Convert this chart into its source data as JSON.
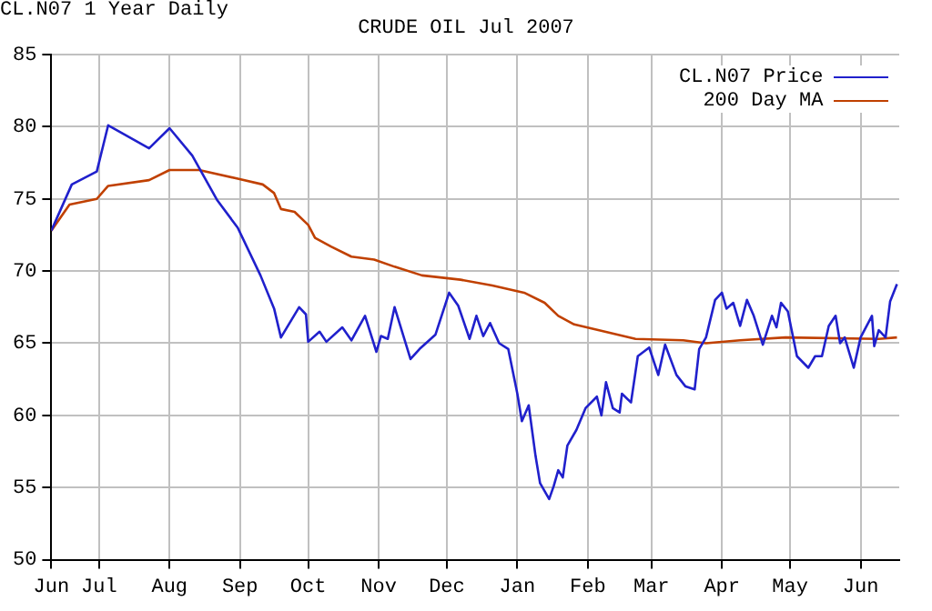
{
  "chart_data": {
    "type": "line",
    "title": "CRUDE OIL Jul 2007",
    "annotations": [
      "CL.N07 1 Year Daily"
    ],
    "xlim": [
      "2006-06-10",
      "2007-06-18"
    ],
    "xticks": [
      {
        "value": "2006-06-10",
        "label": "Jun"
      },
      {
        "value": "2006-07-01",
        "label": "Jul"
      },
      {
        "value": "2006-08-01",
        "label": "Aug"
      },
      {
        "value": "2006-09-01",
        "label": "Sep"
      },
      {
        "value": "2006-10-01",
        "label": "Oct"
      },
      {
        "value": "2006-11-01",
        "label": "Nov"
      },
      {
        "value": "2006-12-01",
        "label": "Dec"
      },
      {
        "value": "2007-01-01",
        "label": "Jan"
      },
      {
        "value": "2007-02-01",
        "label": "Feb"
      },
      {
        "value": "2007-03-01",
        "label": "Mar"
      },
      {
        "value": "2007-04-01",
        "label": "Apr"
      },
      {
        "value": "2007-05-01",
        "label": "May"
      },
      {
        "value": "2007-06-01",
        "label": "Jun"
      }
    ],
    "ylim": [
      50,
      85
    ],
    "yticks": [
      50,
      55,
      60,
      65,
      70,
      75,
      80,
      85
    ],
    "grid": true,
    "legend": "top right",
    "marker": "none",
    "line_style": "solid",
    "series": [
      {
        "name": "CL.N07 Price",
        "color": "#2020cc",
        "x": [
          "2006-06-10",
          "2006-06-19",
          "2006-06-30",
          "2006-07-05",
          "2006-07-23",
          "2006-08-01",
          "2006-08-11",
          "2006-08-22",
          "2006-08-31",
          "2006-09-10",
          "2006-09-16",
          "2006-09-19",
          "2006-09-27",
          "2006-09-30",
          "2006-10-01",
          "2006-10-06",
          "2006-10-09",
          "2006-10-16",
          "2006-10-20",
          "2006-10-26",
          "2006-10-31",
          "2006-11-02",
          "2006-11-05",
          "2006-11-08",
          "2006-11-15",
          "2006-11-19",
          "2006-11-26",
          "2006-12-02",
          "2006-12-06",
          "2006-12-11",
          "2006-12-14",
          "2006-12-17",
          "2006-12-20",
          "2006-12-24",
          "2006-12-28",
          "2007-01-01",
          "2007-01-03",
          "2007-01-06",
          "2007-01-09",
          "2007-01-11",
          "2007-01-15",
          "2007-01-17",
          "2007-01-19",
          "2007-01-21",
          "2007-01-23",
          "2007-01-27",
          "2007-01-31",
          "2007-02-05",
          "2007-02-07",
          "2007-02-09",
          "2007-02-12",
          "2007-02-15",
          "2007-02-16",
          "2007-02-20",
          "2007-02-23",
          "2007-02-28",
          "2007-03-04",
          "2007-03-07",
          "2007-03-12",
          "2007-03-16",
          "2007-03-20",
          "2007-03-22",
          "2007-03-25",
          "2007-03-29",
          "2007-04-01",
          "2007-04-03",
          "2007-04-06",
          "2007-04-09",
          "2007-04-12",
          "2007-04-15",
          "2007-04-19",
          "2007-04-23",
          "2007-04-25",
          "2007-04-27",
          "2007-04-30",
          "2007-05-04",
          "2007-05-09",
          "2007-05-12",
          "2007-05-15",
          "2007-05-18",
          "2007-05-21",
          "2007-05-23",
          "2007-05-25",
          "2007-05-29",
          "2007-06-01",
          "2007-06-04",
          "2007-06-06",
          "2007-06-07",
          "2007-06-09",
          "2007-06-12",
          "2007-06-14",
          "2007-06-17"
        ],
        "values": [
          72.8,
          76.0,
          76.9,
          80.1,
          78.5,
          79.9,
          78.0,
          74.9,
          73.0,
          69.7,
          67.4,
          65.4,
          67.5,
          67.0,
          65.1,
          65.8,
          65.1,
          66.1,
          65.2,
          66.9,
          64.4,
          65.5,
          65.3,
          67.5,
          63.9,
          64.6,
          65.6,
          68.5,
          67.6,
          65.3,
          66.9,
          65.5,
          66.4,
          65.0,
          64.6,
          61.5,
          59.6,
          60.7,
          57.2,
          55.3,
          54.2,
          55.1,
          56.2,
          55.7,
          57.9,
          59.0,
          60.5,
          61.3,
          60.0,
          62.3,
          60.5,
          60.2,
          61.5,
          60.9,
          64.1,
          64.7,
          62.8,
          64.9,
          62.8,
          62.0,
          61.8,
          64.6,
          65.4,
          68.0,
          68.5,
          67.4,
          67.8,
          66.2,
          68.0,
          66.9,
          64.9,
          66.9,
          66.1,
          67.8,
          67.2,
          64.1,
          63.3,
          64.1,
          64.1,
          66.2,
          66.9,
          65.0,
          65.4,
          63.3,
          65.4,
          66.3,
          66.9,
          64.8,
          65.9,
          65.4,
          67.9,
          69.1
        ]
      },
      {
        "name": "200 Day MA",
        "color": "#c04000",
        "x": [
          "2006-06-10",
          "2006-06-18",
          "2006-06-30",
          "2006-07-05",
          "2006-07-23",
          "2006-08-01",
          "2006-08-14",
          "2006-08-31",
          "2006-09-11",
          "2006-09-16",
          "2006-09-19",
          "2006-09-25",
          "2006-10-01",
          "2006-10-04",
          "2006-10-11",
          "2006-10-20",
          "2006-10-30",
          "2006-11-08",
          "2006-11-20",
          "2006-12-07",
          "2006-12-21",
          "2007-01-04",
          "2007-01-13",
          "2007-01-19",
          "2007-01-26",
          "2007-02-06",
          "2007-02-22",
          "2007-03-15",
          "2007-03-25",
          "2007-04-09",
          "2007-04-29",
          "2007-06-09",
          "2007-06-17"
        ],
        "values": [
          72.8,
          74.6,
          75.0,
          75.9,
          76.3,
          77.0,
          77.0,
          76.4,
          76.0,
          75.4,
          74.3,
          74.1,
          73.2,
          72.3,
          71.7,
          71.0,
          70.8,
          70.3,
          69.7,
          69.4,
          69.0,
          68.5,
          67.8,
          66.9,
          66.3,
          65.9,
          65.3,
          65.2,
          65.0,
          65.2,
          65.4,
          65.3,
          65.4
        ]
      }
    ]
  }
}
